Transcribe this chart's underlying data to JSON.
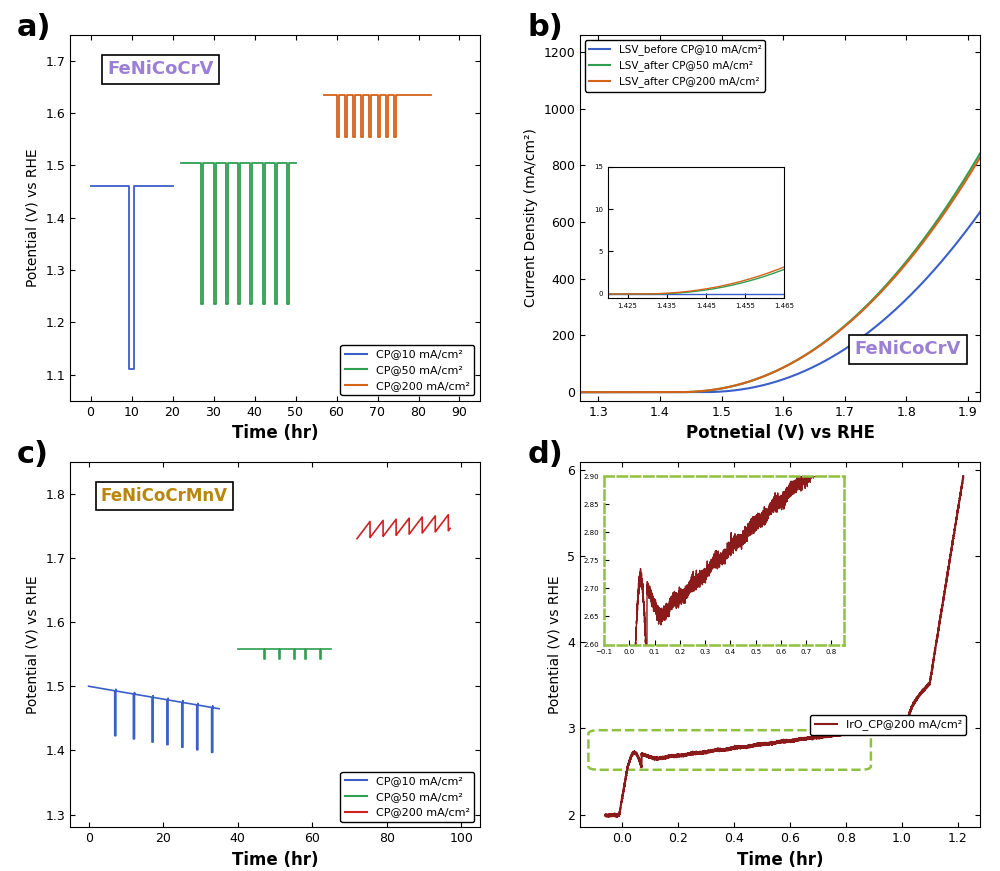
{
  "fig_width": 10.0,
  "fig_height": 8.71,
  "background_color": "#ffffff",
  "panel_a": {
    "label": "a)",
    "xlabel": "Time (hr)",
    "ylabel": "Potential (V) vs RHE",
    "xlim": [
      -5,
      95
    ],
    "ylim": [
      1.05,
      1.75
    ],
    "xticks": [
      0,
      10,
      20,
      30,
      40,
      50,
      60,
      70,
      80,
      90
    ],
    "yticks": [
      1.1,
      1.2,
      1.3,
      1.4,
      1.5,
      1.6,
      1.7
    ],
    "title_box": "FeNiCoCrV",
    "title_color": "#9b7fd4",
    "legend_labels": [
      "CP@10 mA/cm²",
      "CP@50 mA/cm²",
      "CP@200 mA/cm²"
    ],
    "legend_colors": [
      "#3a5fc8",
      "#2e9e4f",
      "#d4621a"
    ]
  },
  "panel_b": {
    "label": "b)",
    "xlabel": "Potnetial (V) vs RHE",
    "ylabel": "Current Density (mA/cm²)",
    "xlim": [
      1.27,
      1.92
    ],
    "ylim": [
      -30,
      1260
    ],
    "xticks": [
      1.3,
      1.4,
      1.5,
      1.6,
      1.7,
      1.8,
      1.9
    ],
    "yticks": [
      0,
      200,
      400,
      600,
      800,
      1000,
      1200
    ],
    "title_box": "FeNiCoCrV",
    "title_color": "#9b7fd4",
    "legend_labels": [
      "LSV_before CP@10 mA/cm²",
      "LSV_after CP@50 mA/cm²",
      "LSV_after CP@200 mA/cm²"
    ],
    "legend_colors": [
      "#3a5fc8",
      "#2e9e4f",
      "#d4621a"
    ]
  },
  "panel_c": {
    "label": "c)",
    "xlabel": "Time (hr)",
    "ylabel": "Potential (V) vs RHE",
    "xlim": [
      -5,
      105
    ],
    "ylim": [
      1.28,
      1.85
    ],
    "xticks": [
      0,
      20,
      40,
      60,
      80,
      100
    ],
    "yticks": [
      1.3,
      1.4,
      1.5,
      1.6,
      1.7,
      1.8
    ],
    "title_box": "FeNiCoCrMnV",
    "title_color": "#b8860b",
    "legend_labels": [
      "CP@10 mA/cm²",
      "CP@50 mA/cm²",
      "CP@200 mA/cm²"
    ],
    "legend_colors": [
      "#3a5fc8",
      "#2e9e4f",
      "#cc2222"
    ]
  },
  "panel_d": {
    "label": "d)",
    "xlabel": "Time (hr)",
    "ylabel": "Potential (V) vs RHE",
    "xlim": [
      -0.15,
      1.28
    ],
    "ylim": [
      1.85,
      6.1
    ],
    "xticks": [
      0.0,
      0.2,
      0.4,
      0.6,
      0.8,
      1.0,
      1.2
    ],
    "yticks": [
      2,
      3,
      4,
      5,
      6
    ],
    "legend_label": "IrO_CP@200 mA/cm²",
    "legend_color": "#8b1a1a"
  }
}
